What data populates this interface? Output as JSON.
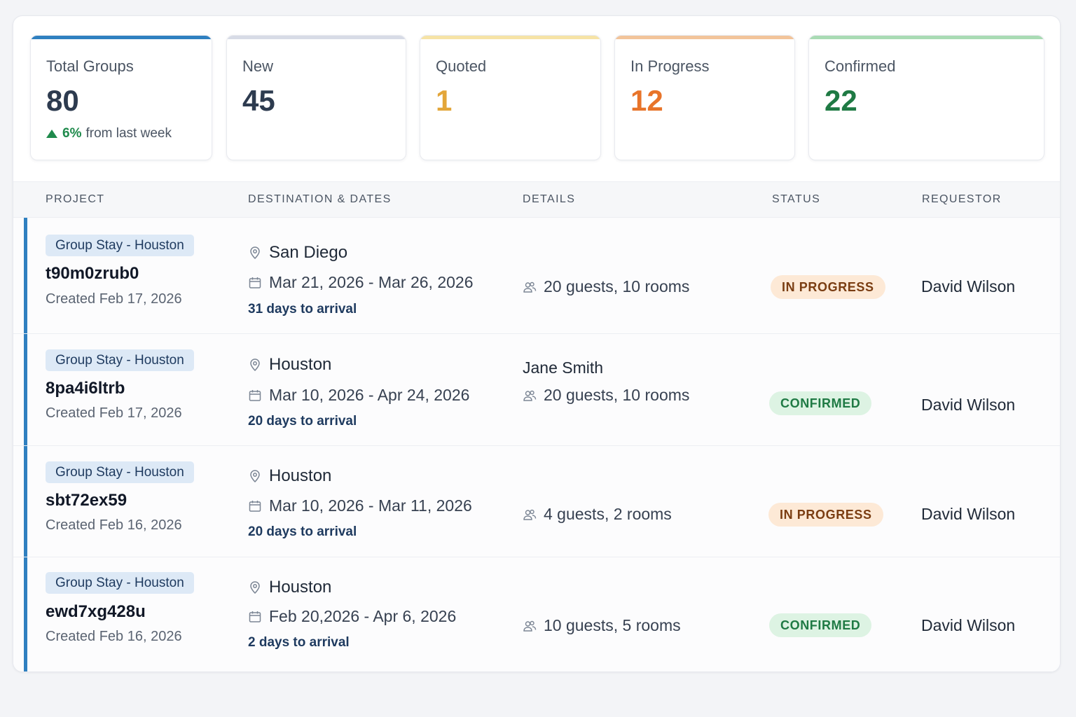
{
  "stats": [
    {
      "label": "Total Groups",
      "value": "80",
      "trend_pct": "6%",
      "trend_text": "from last week",
      "accent": "#2f80c0",
      "value_color": "#2d3b4f"
    },
    {
      "label": "New",
      "value": "45",
      "accent": "#d7dbe6",
      "value_color": "#2d3b4f"
    },
    {
      "label": "Quoted",
      "value": "1",
      "accent": "#f6e3a6",
      "value_color": "#e3a63a"
    },
    {
      "label": "In Progress",
      "value": "12",
      "accent": "#f2c49a",
      "value_color": "#e8742a"
    },
    {
      "label": "Confirmed",
      "value": "22",
      "accent": "#a9dbb4",
      "value_color": "#1f7a44"
    }
  ],
  "table": {
    "headers": {
      "project": "PROJECT",
      "destination": "DESTINATION & DATES",
      "details": "DETAILS",
      "status": "STATUS",
      "requestor": "REQUESTOR"
    },
    "rows": [
      {
        "tag": "Group Stay - Houston",
        "id": "t90m0zrub0",
        "created": "Created Feb 17, 2026",
        "destination": "San Diego",
        "dates": "Mar 21, 2026 - Mar 26, 2026",
        "arrival": "31 days to arrival",
        "contact": "",
        "details": "20 guests, 10 rooms",
        "status": "IN PROGRESS",
        "requestor": "David Wilson"
      },
      {
        "tag": "Group Stay - Houston",
        "id": "8pa4i6ltrb",
        "created": "Created Feb 17, 2026",
        "destination": "Houston",
        "dates": "Mar 10, 2026 - Apr 24, 2026",
        "arrival": "20 days to arrival",
        "contact": "Jane Smith",
        "details": "20 guests, 10 rooms",
        "status": "CONFIRMED",
        "requestor": "David Wilson"
      },
      {
        "tag": "Group Stay - Houston",
        "id": "sbt72ex59",
        "created": "Created Feb 16, 2026",
        "destination": "Houston",
        "dates": "Mar 10, 2026 - Mar 11, 2026",
        "arrival": "20 days to arrival",
        "contact": "",
        "details": "4 guests, 2 rooms",
        "status": "IN PROGRESS",
        "requestor": "David Wilson"
      },
      {
        "tag": "Group Stay - Houston",
        "id": "ewd7xg428u",
        "created": "Created Feb 16, 2026",
        "destination": "Houston",
        "dates": "Feb 20,2026 - Apr 6, 2026",
        "arrival": "2 days to arrival",
        "contact": "",
        "details": "10 guests, 5 rooms",
        "status": "CONFIRMED",
        "requestor": "David Wilson"
      }
    ]
  }
}
